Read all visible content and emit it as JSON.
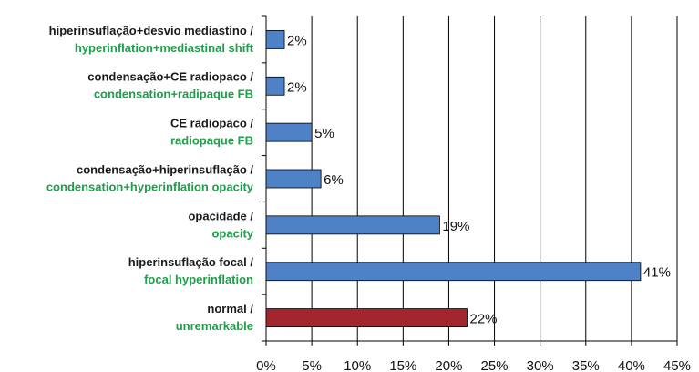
{
  "chart_data": {
    "type": "hbar",
    "categories": [
      [
        "hiperinsuflação+desvio mediastino /",
        "hyperinflation+mediastinal shift"
      ],
      [
        "condensação+CE radiopaco /",
        "condensation+radipaque FB"
      ],
      [
        "CE radiopaco /",
        "radiopaque FB"
      ],
      [
        "condensação+hiperinsuflação /",
        "condensation+hyperinflation opacity"
      ],
      [
        "opacidade /",
        "opacity"
      ],
      [
        "hiperinsuflação focal /",
        "focal hyperinflation"
      ],
      [
        "normal /",
        "unremarkable"
      ]
    ],
    "values": [
      2,
      2,
      5,
      6,
      19,
      41,
      22
    ],
    "value_labels": [
      "2%",
      "2%",
      "5%",
      "6%",
      "19%",
      "41%",
      "22%"
    ],
    "colors": [
      "#4f81c7",
      "#4f81c7",
      "#4f81c7",
      "#4f81c7",
      "#4f81c7",
      "#4f81c7",
      "#a3262e"
    ],
    "label_colors": [
      "#1a1a1a",
      "#1e9e4a"
    ],
    "xlim": [
      0,
      45
    ],
    "xticks": [
      {
        "value": 0,
        "label": "0%"
      },
      {
        "value": 5,
        "label": "5%"
      },
      {
        "value": 10,
        "label": "10%"
      },
      {
        "value": 15,
        "label": "15%"
      },
      {
        "value": 20,
        "label": "20%"
      },
      {
        "value": 25,
        "label": "25%"
      },
      {
        "value": 30,
        "label": "30%"
      },
      {
        "value": 35,
        "label": "35%"
      },
      {
        "value": 40,
        "label": "40%"
      },
      {
        "value": 45,
        "label": "45%"
      }
    ],
    "grid": true
  }
}
